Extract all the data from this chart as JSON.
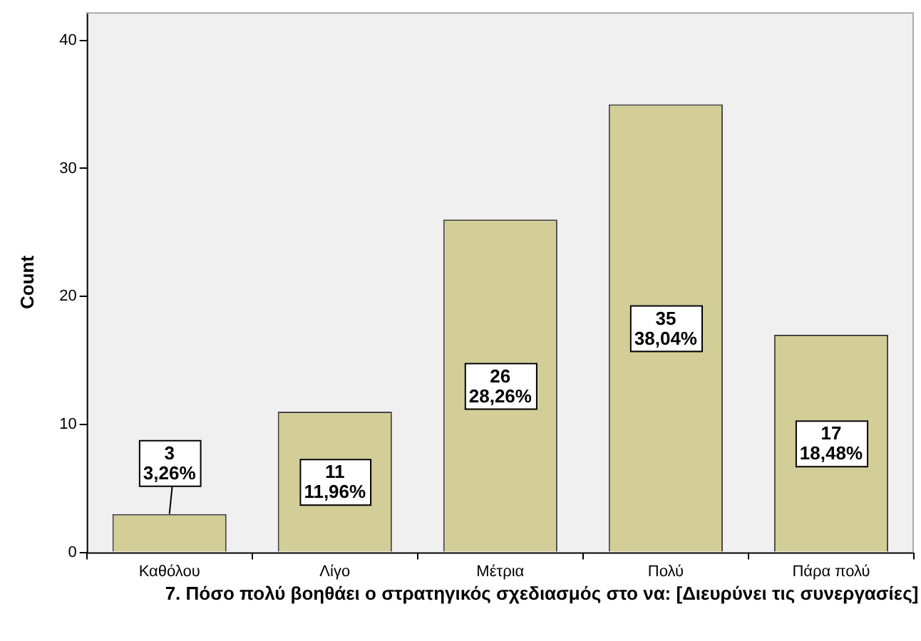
{
  "chart_data": {
    "type": "bar",
    "xlabel": "7. Πόσο πολύ βοηθάει ο  στρατηγικός σχεδιασμός στο να: [Διευρύνει τις συνεργασίες]",
    "ylabel": "Count",
    "categories": [
      "Καθόλου",
      "Λίγο",
      "Μέτρια",
      "Πολύ",
      "Πάρα πολύ"
    ],
    "values": [
      3,
      11,
      26,
      35,
      17
    ],
    "value_labels": [
      "3\n3,26%",
      "11\n11,96%",
      "26\n28,26%",
      "35\n38,04%",
      "17\n18,48%"
    ],
    "color": "#d3ce97",
    "ylim": [
      0,
      42.2
    ],
    "yticks": [
      0,
      10,
      20,
      30,
      40
    ],
    "grid": false
  }
}
